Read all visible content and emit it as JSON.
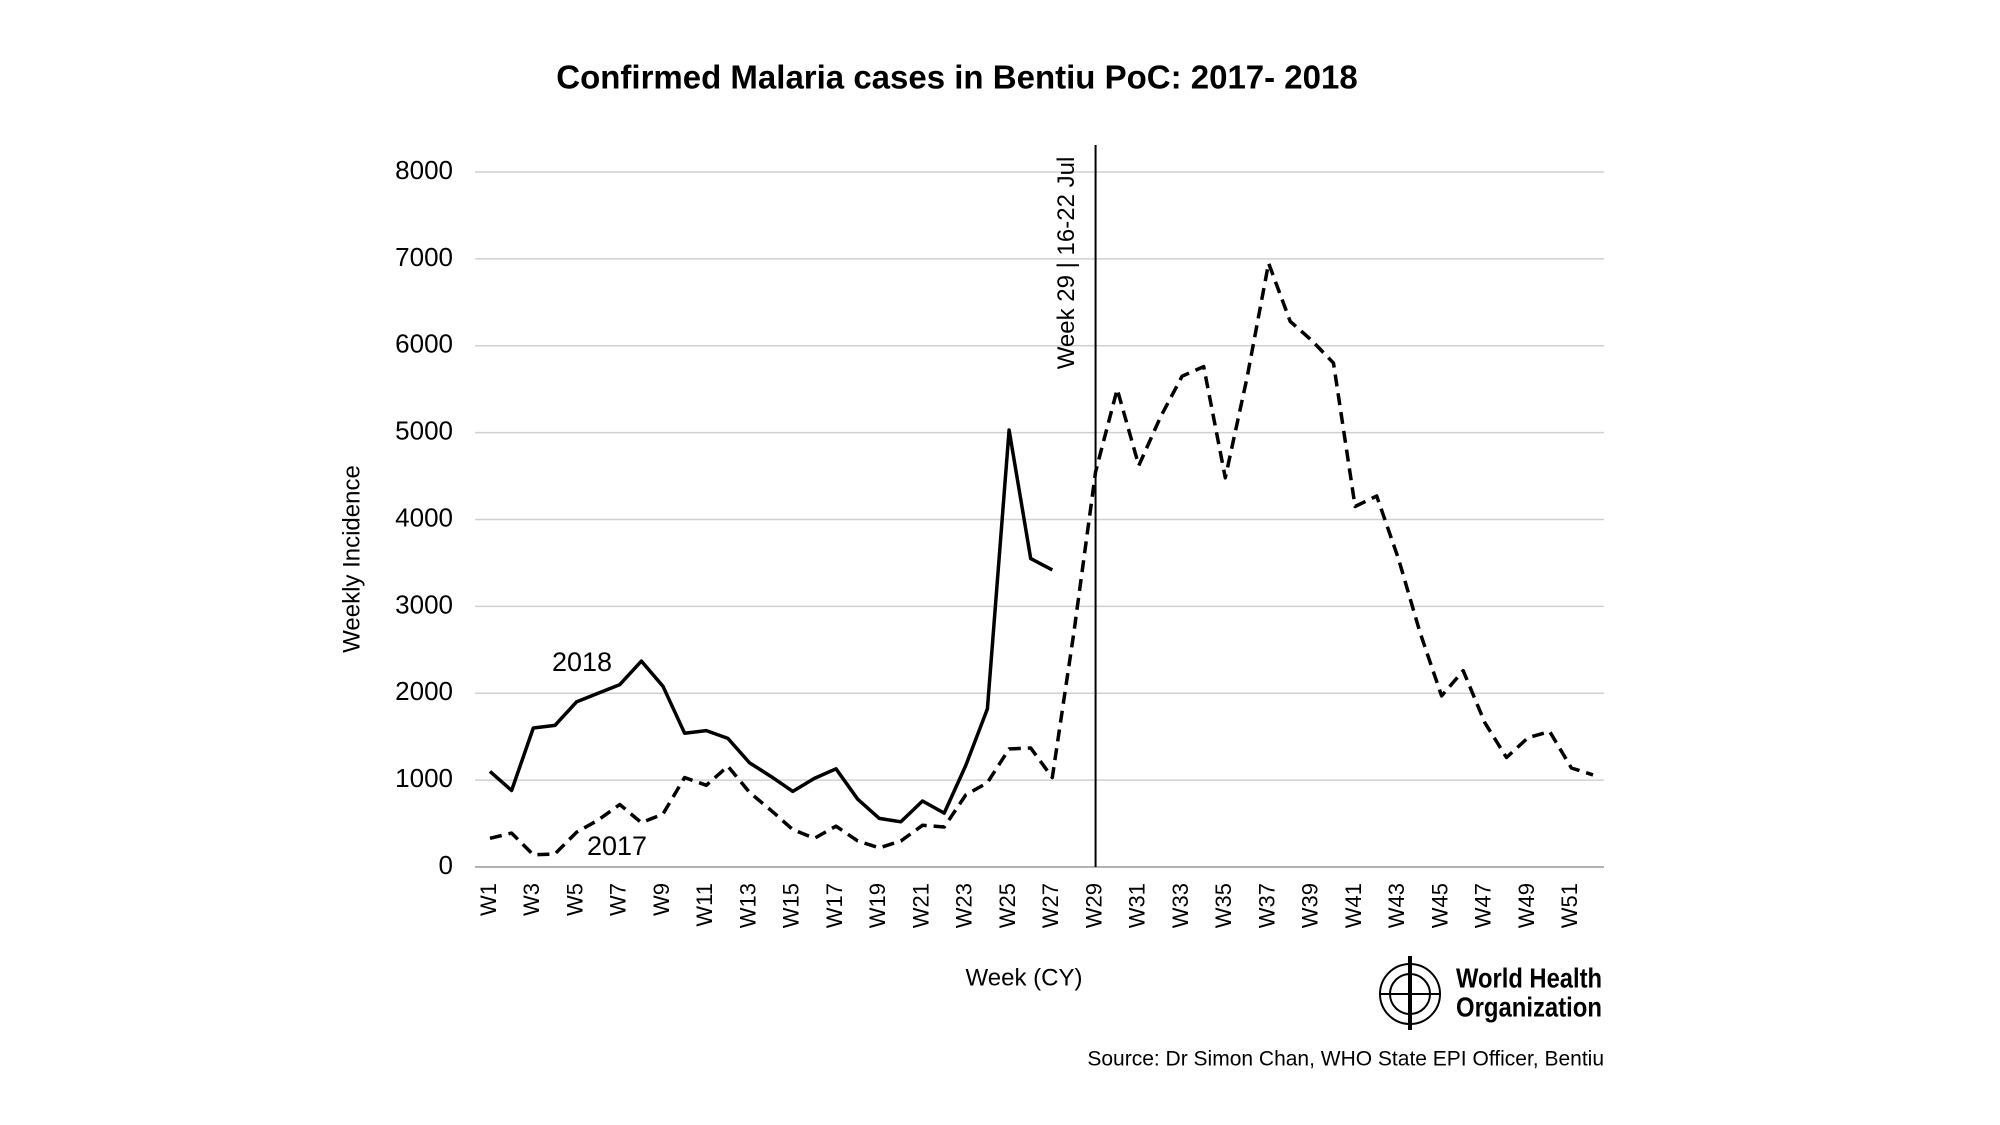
{
  "chart_data": {
    "type": "line",
    "title": "Confirmed Malaria cases in Bentiu PoC: 2017- 2018",
    "x_label": "Week (CY)",
    "y_label": "Weekly Incidence",
    "categories": [
      "W1",
      null,
      "W3",
      null,
      "W5",
      null,
      "W7",
      null,
      "W9",
      null,
      "W11",
      null,
      "W13",
      null,
      "W15",
      null,
      "W17",
      null,
      "W19",
      null,
      "W21",
      null,
      "W23",
      null,
      "W25",
      null,
      "W27",
      null,
      "W29",
      null,
      "W31",
      null,
      "W33",
      null,
      "W35",
      null,
      "W37",
      null,
      "W39",
      null,
      "W41",
      null,
      "W43",
      null,
      "W45",
      null,
      "W47",
      null,
      "W49",
      null,
      "W51",
      null
    ],
    "series": [
      {
        "name": "2018",
        "color": "#000000",
        "dash": "solid",
        "values": [
          1100,
          880,
          1600,
          1630,
          1900,
          2000,
          2100,
          2370,
          2080,
          1540,
          1570,
          1480,
          1200,
          1040,
          870,
          1020,
          1130,
          780,
          560,
          520,
          760,
          620,
          1170,
          1820,
          5030,
          3550,
          3420,
          null,
          null,
          null,
          null,
          null,
          null,
          null,
          null,
          null,
          null,
          null,
          null,
          null,
          null,
          null,
          null,
          null,
          null,
          null,
          null,
          null,
          null,
          null,
          null,
          null
        ]
      },
      {
        "name": "2017",
        "color": "#000000",
        "dash": "dashed",
        "values": [
          330,
          390,
          140,
          150,
          400,
          540,
          720,
          510,
          610,
          1030,
          940,
          1160,
          860,
          650,
          430,
          330,
          470,
          300,
          220,
          300,
          480,
          460,
          830,
          970,
          1360,
          1370,
          1030,
          2700,
          4550,
          5500,
          4620,
          5180,
          5650,
          5760,
          4480,
          5630,
          6950,
          6280,
          6060,
          5800,
          4150,
          4270,
          3550,
          2700,
          1970,
          2260,
          1660,
          1260,
          1490,
          1560,
          1140,
          1060
        ]
      }
    ],
    "ylim": [
      0,
      8000
    ],
    "yticks": [
      0,
      1000,
      2000,
      3000,
      4000,
      5000,
      6000,
      7000,
      8000
    ],
    "grid": true,
    "marker_line": {
      "category_index": 28,
      "label": "Week 29 | 16-22 Jul"
    },
    "logo_text": [
      "World Health",
      "Organization"
    ],
    "source": "Source: Dr Simon Chan, WHO State EPI Officer, Bentiu"
  }
}
